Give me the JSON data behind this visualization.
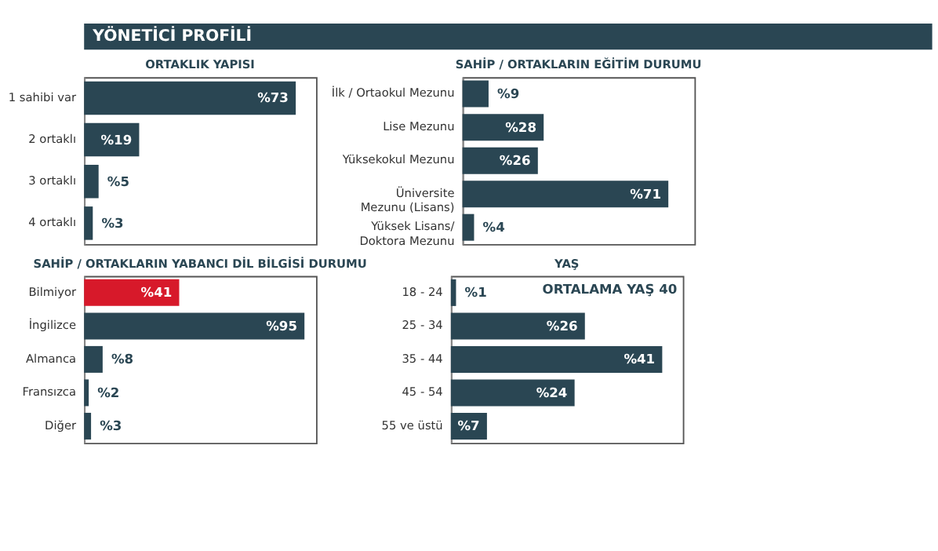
{
  "chart_data": [
    {
      "type": "other",
      "title": "YÖNETİCİ PROFİLİ"
    },
    {
      "type": "bar",
      "orientation": "horizontal",
      "title": "ORTAKLIK YAPISI",
      "categories": [
        "1 sahibi var",
        "2 ortaklı",
        "3 ortaklı",
        "4 ortaklı"
      ],
      "values": [
        73,
        19,
        5,
        3
      ],
      "value_labels": [
        "%73",
        "%19",
        "%5",
        "%3"
      ],
      "colors": [
        "#2a4653",
        "#2a4653",
        "#2a4653",
        "#2a4653"
      ]
    },
    {
      "type": "bar",
      "orientation": "horizontal",
      "title": "SAHİP / ORTAKLARIN EĞİTİM DURUMU",
      "categories": [
        "İlk / Ortaokul Mezunu",
        "Lise Mezunu",
        "Yüksekokul Mezunu",
        "Üniversite Mezunu (Lisans)",
        "Yüksek Lisans/ Doktora Mezunu"
      ],
      "values": [
        9,
        28,
        26,
        71,
        4
      ],
      "value_labels": [
        "%9",
        "%28",
        "%26",
        "%71",
        "%4"
      ],
      "colors": [
        "#2a4653",
        "#2a4653",
        "#2a4653",
        "#2a4653",
        "#2a4653"
      ]
    },
    {
      "type": "bar",
      "orientation": "horizontal",
      "title": "SAHİP / ORTAKLARIN YABANCI DİL BİLGİSİ DURUMU",
      "categories": [
        "Bilmiyor",
        "İngilizce",
        "Almanca",
        "Fransızca",
        "Diğer"
      ],
      "values": [
        41,
        95,
        8,
        2,
        3
      ],
      "value_labels": [
        "%41",
        "%95",
        "%8",
        "%2",
        "%3"
      ],
      "colors": [
        "#d7192a",
        "#2a4653",
        "#2a4653",
        "#2a4653",
        "#2a4653"
      ]
    },
    {
      "type": "bar",
      "orientation": "horizontal",
      "title": "YAŞ",
      "categories": [
        "18 - 24",
        "25 - 34",
        "35 - 44",
        "45 - 54",
        "55 ve üstü"
      ],
      "values": [
        1,
        26,
        41,
        24,
        7
      ],
      "value_labels": [
        "%1",
        "%26",
        "%41",
        "%24",
        "%7"
      ],
      "colors": [
        "#2a4653",
        "#2a4653",
        "#2a4653",
        "#2a4653",
        "#2a4653"
      ],
      "annotations": [
        "ORTALAMA YAŞ 40"
      ]
    }
  ]
}
